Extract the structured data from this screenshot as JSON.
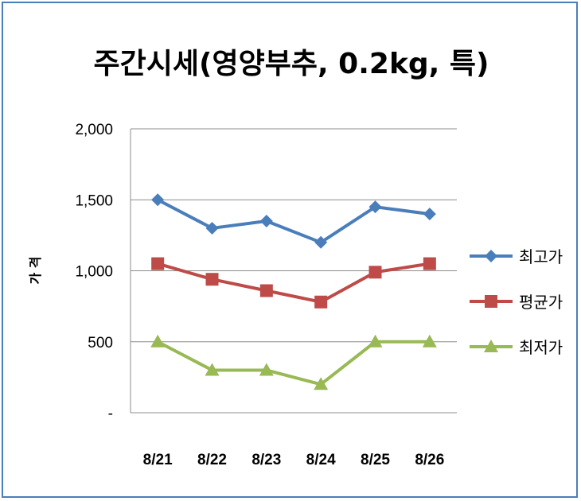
{
  "chart_data": {
    "type": "line",
    "title": "주간시세(영양부추, 0.2kg, 특)",
    "xlabel": "",
    "ylabel": "가 격",
    "categories": [
      "8/21",
      "8/22",
      "8/23",
      "8/24",
      "8/25",
      "8/26"
    ],
    "ylim": [
      0,
      2000
    ],
    "yticks": [
      0,
      500,
      1000,
      1500,
      2000
    ],
    "ytick_labels": [
      "-",
      "500",
      "1,000",
      "1,500",
      "2,000"
    ],
    "grid": true,
    "legend_position": "right",
    "series": [
      {
        "name": "최고가",
        "values": [
          1500,
          1300,
          1350,
          1200,
          1450,
          1400
        ],
        "color": "#4a7ebb",
        "marker": "diamond"
      },
      {
        "name": "평균가",
        "values": [
          1050,
          940,
          860,
          780,
          990,
          1050
        ],
        "color": "#be4b48",
        "marker": "square"
      },
      {
        "name": "최저가",
        "values": [
          500,
          300,
          300,
          200,
          500,
          500
        ],
        "color": "#98b954",
        "marker": "triangle"
      }
    ]
  }
}
